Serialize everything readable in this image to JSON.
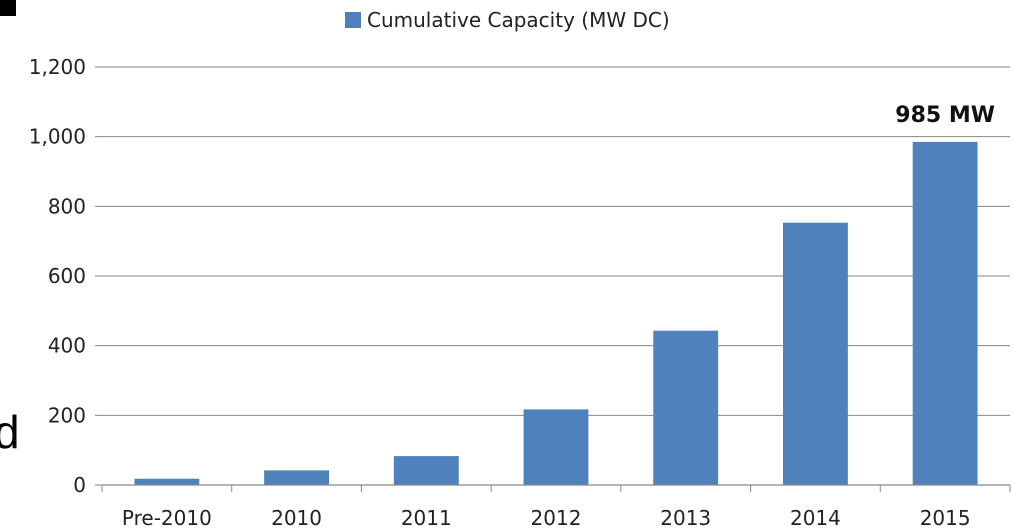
{
  "chart_data": {
    "type": "bar",
    "categories": [
      "Pre-2010",
      "2010",
      "2011",
      "2012",
      "2013",
      "2014",
      "2015"
    ],
    "series": [
      {
        "name": "Cumulative Capacity (MW DC)",
        "values": [
          18,
          42,
          83,
          217,
          443,
          753,
          985
        ],
        "color": "#4f81bd"
      }
    ],
    "ylim": [
      0,
      1200
    ],
    "yticks": [
      "0",
      "200",
      "400",
      "600",
      "800",
      "1,000",
      "1,200"
    ],
    "grid": true,
    "legend": "top-center",
    "annotation": {
      "text": "985 MW",
      "category": "2015"
    }
  },
  "stray_text": "d"
}
